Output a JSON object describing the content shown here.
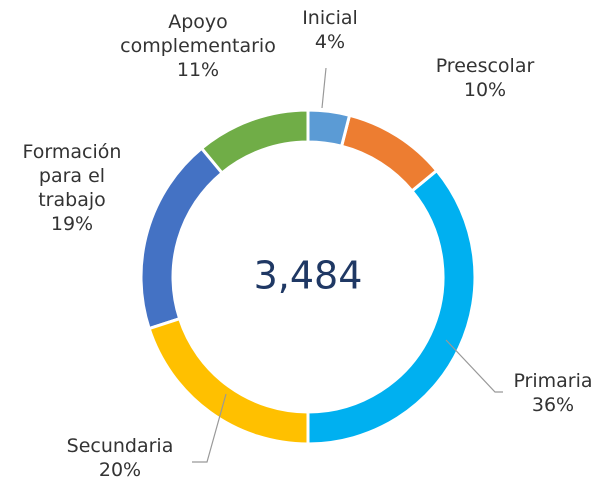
{
  "chart_data": {
    "type": "donut",
    "categories": [
      "Inicial",
      "Preescolar",
      "Primaria",
      "Secundaria",
      "Formación para el trabajo",
      "Apoyo complementario"
    ],
    "values": [
      4,
      10,
      36,
      20,
      19,
      11
    ],
    "value_labels": [
      "4%",
      "10%",
      "36%",
      "20%",
      "19%",
      "11%"
    ],
    "colors": [
      "#5b9bd5",
      "#ed7d31",
      "#00b0f0",
      "#ffc000",
      "#4472c4",
      "#70ad47"
    ],
    "center_label": "3,484"
  }
}
